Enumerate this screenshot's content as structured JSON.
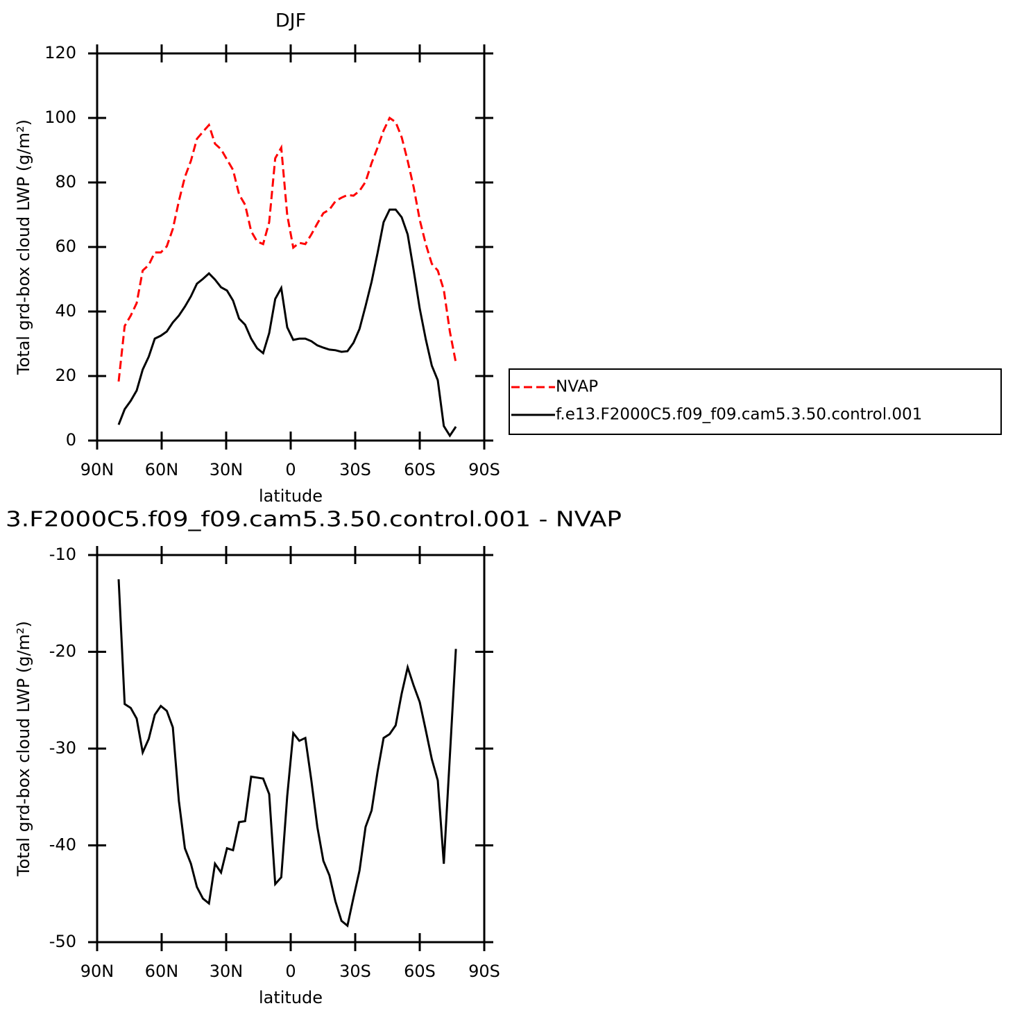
{
  "chart_data": [
    {
      "type": "line",
      "title": "DJF",
      "xlabel": "latitude",
      "ylabel": "Total grd-box cloud LWP (g/m²)",
      "x": [
        80,
        77.2,
        74.4,
        71.6,
        68.8,
        66,
        63.2,
        60.4,
        57.6,
        54.8,
        52,
        49.2,
        46.4,
        43.6,
        40.8,
        38,
        35.2,
        32.4,
        29.6,
        26.8,
        24,
        21.2,
        18.4,
        15.6,
        12.8,
        10,
        7.2,
        4.4,
        1.6,
        -1.2,
        -4,
        -6.8,
        -9.6,
        -12.4,
        -15.2,
        -18,
        -20.8,
        -23.6,
        -26.4,
        -29.2,
        -32,
        -34.8,
        -37.6,
        -40.4,
        -43.2,
        -46,
        -48.8,
        -51.6,
        -54.4,
        -57.2,
        -60,
        -62.8,
        -65.6,
        -68.4,
        -71.2,
        -74,
        -76.8
      ],
      "series": [
        {
          "name": "NVAP",
          "color": "#ff0000",
          "line_style": "dashed",
          "values": [
            18.3,
            35.5,
            38.7,
            42.6,
            52.7,
            54.4,
            58.3,
            58.3,
            60.2,
            65.6,
            74.2,
            81.7,
            86.7,
            93.5,
            95.7,
            97.8,
            92,
            90.3,
            87.1,
            83.9,
            76.3,
            73.1,
            64.9,
            61.7,
            60.9,
            67.7,
            87.5,
            90.8,
            69.9,
            59.8,
            61.3,
            60.9,
            63.9,
            67.3,
            70.5,
            71.6,
            74.2,
            75.3,
            76.1,
            75.9,
            77.4,
            80.2,
            86,
            90.8,
            96.1,
            100,
            98.7,
            94,
            86.7,
            78.5,
            68.4,
            60.9,
            54.8,
            52.7,
            46.7,
            33.8,
            24.1
          ]
        },
        {
          "name": "f.e13.F2000C5.f09_f09.cam5.3.50.control.001",
          "color": "#000000",
          "line_style": "solid",
          "values": [
            4.9,
            9.7,
            12.3,
            15.5,
            22,
            26,
            31.6,
            32.5,
            33.8,
            36.6,
            38.7,
            41.5,
            44.7,
            48.6,
            50.1,
            51.8,
            49.9,
            47.5,
            46.5,
            43.4,
            37.8,
            35.9,
            31.6,
            28.6,
            27.1,
            33.3,
            43.9,
            47.3,
            35.1,
            31.2,
            31.6,
            31.6,
            30.8,
            29.5,
            28.8,
            28.2,
            28,
            27.5,
            27.7,
            30.3,
            34.6,
            41.7,
            49.2,
            58.1,
            67.7,
            71.6,
            71.6,
            69.2,
            63.9,
            52.7,
            40.9,
            31.4,
            23.2,
            18.7,
            4.5,
            1.5,
            4.3
          ]
        }
      ],
      "xlim": [
        90,
        -90
      ],
      "xticks": [
        {
          "value": 90,
          "label": "90N"
        },
        {
          "value": 60,
          "label": "60N"
        },
        {
          "value": 30,
          "label": "30N"
        },
        0,
        {
          "value": -30,
          "label": "30S"
        },
        {
          "value": -60,
          "label": "60S"
        },
        {
          "value": -90,
          "label": "90S"
        }
      ],
      "ylim": [
        0,
        120
      ],
      "yticks": [
        0,
        20,
        40,
        60,
        80,
        100,
        120
      ],
      "legend": "right"
    },
    {
      "type": "line",
      "title": "3.F2000C5.f09_f09.cam5.3.50.control.001  -  NVAP",
      "xlabel": "latitude",
      "ylabel": "Total grd-box cloud LWP (g/m²)",
      "x": [
        80,
        77.2,
        74.4,
        71.6,
        68.8,
        66,
        63.2,
        60.4,
        57.6,
        54.8,
        52,
        49.2,
        46.4,
        43.6,
        40.8,
        38,
        35.2,
        32.4,
        29.6,
        26.8,
        24,
        21.2,
        18.4,
        15.6,
        12.8,
        10,
        7.2,
        4.4,
        1.6,
        -1.2,
        -4,
        -6.8,
        -9.6,
        -12.4,
        -15.2,
        -18,
        -20.8,
        -23.6,
        -26.4,
        -29.2,
        -32,
        -34.8,
        -37.6,
        -40.4,
        -43.2,
        -46,
        -48.8,
        -51.6,
        -54.4,
        -57.2,
        -60,
        -62.8,
        -65.6,
        -68.4,
        -71.2,
        -74,
        -76.8
      ],
      "series": [
        {
          "color": "#000000",
          "line_style": "solid",
          "values": [
            -12.5,
            -25.4,
            -25.8,
            -26.9,
            -30.4,
            -29,
            -26.5,
            -25.6,
            -26.1,
            -27.8,
            -35.4,
            -40.3,
            -41.9,
            -44.3,
            -45.5,
            -46,
            -41.9,
            -42.8,
            -40.3,
            -40.5,
            -37.6,
            -37.5,
            -32.9,
            -33,
            -33.1,
            -34.7,
            -44,
            -43.3,
            -34.9,
            -28.4,
            -29.2,
            -28.9,
            -33.3,
            -38.1,
            -41.6,
            -43.1,
            -45.8,
            -47.8,
            -48.3,
            -45.4,
            -42.6,
            -38.1,
            -36.4,
            -32.4,
            -28.9,
            -28.5,
            -27.6,
            -24.3,
            -21.6,
            -23.5,
            -25.2,
            -28.1,
            -31.1,
            -33.3,
            -41.9,
            -30.8,
            -19.7
          ]
        }
      ],
      "xlim": [
        90,
        -90
      ],
      "xticks": [
        {
          "value": 90,
          "label": "90N"
        },
        {
          "value": 60,
          "label": "60N"
        },
        {
          "value": 30,
          "label": "30N"
        },
        0,
        {
          "value": -30,
          "label": "30S"
        },
        {
          "value": -60,
          "label": "60S"
        },
        {
          "value": -90,
          "label": "90S"
        }
      ],
      "ylim": [
        -50,
        -10
      ],
      "yticks": [
        -50,
        -40,
        -30,
        -20,
        -10
      ]
    }
  ]
}
